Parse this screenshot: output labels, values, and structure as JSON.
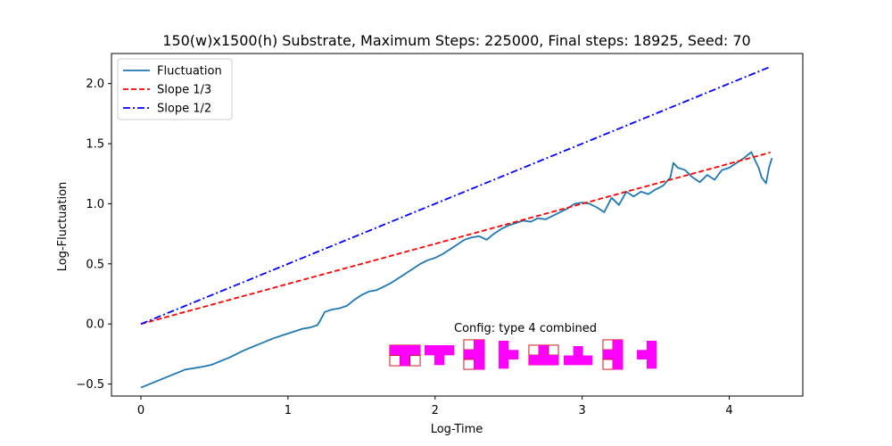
{
  "chart_data": {
    "type": "line",
    "title": "150(w)x1500(h) Substrate, Maximum Steps: 225000, Final steps: 18925, Seed: 70",
    "xlabel": "Log-Time",
    "ylabel": "Log-Fluctuation",
    "xlim": [
      -0.2,
      4.5
    ],
    "ylim": [
      -0.6,
      2.25
    ],
    "xticks": [
      0,
      1,
      2,
      3,
      4
    ],
    "xtick_labels": [
      "0",
      "1",
      "2",
      "3",
      "4"
    ],
    "yticks": [
      -0.5,
      0.0,
      0.5,
      1.0,
      1.5,
      2.0
    ],
    "ytick_labels": [
      "−0.5",
      "0.0",
      "0.5",
      "1.0",
      "1.5",
      "2.0"
    ],
    "grid": false,
    "legend_position": "top-left",
    "series": [
      {
        "name": "Fluctuation",
        "color": "#1f77b4",
        "style": "solid",
        "x": [
          0.0,
          0.1,
          0.2,
          0.3,
          0.4,
          0.48,
          0.6,
          0.7,
          0.8,
          0.9,
          1.0,
          1.1,
          1.15,
          1.2,
          1.22,
          1.25,
          1.3,
          1.35,
          1.4,
          1.45,
          1.5,
          1.55,
          1.6,
          1.65,
          1.7,
          1.75,
          1.8,
          1.85,
          1.9,
          1.95,
          2.0,
          2.05,
          2.1,
          2.15,
          2.2,
          2.25,
          2.3,
          2.35,
          2.4,
          2.45,
          2.5,
          2.55,
          2.6,
          2.65,
          2.7,
          2.75,
          2.8,
          2.85,
          2.9,
          2.95,
          3.0,
          3.05,
          3.1,
          3.15,
          3.2,
          3.25,
          3.3,
          3.35,
          3.4,
          3.45,
          3.5,
          3.55,
          3.6,
          3.62,
          3.65,
          3.7,
          3.75,
          3.8,
          3.85,
          3.9,
          3.95,
          4.0,
          4.05,
          4.1,
          4.15,
          4.18,
          4.2,
          4.22,
          4.25,
          4.27,
          4.29
        ],
        "y": [
          -0.53,
          -0.48,
          -0.43,
          -0.38,
          -0.36,
          -0.34,
          -0.28,
          -0.22,
          -0.17,
          -0.12,
          -0.08,
          -0.04,
          -0.03,
          -0.01,
          0.03,
          0.1,
          0.12,
          0.13,
          0.15,
          0.2,
          0.24,
          0.27,
          0.28,
          0.31,
          0.34,
          0.38,
          0.42,
          0.46,
          0.5,
          0.53,
          0.55,
          0.58,
          0.62,
          0.66,
          0.7,
          0.72,
          0.73,
          0.7,
          0.75,
          0.79,
          0.82,
          0.84,
          0.86,
          0.85,
          0.88,
          0.87,
          0.9,
          0.93,
          0.96,
          1.0,
          1.01,
          1.0,
          0.97,
          0.93,
          1.05,
          0.99,
          1.1,
          1.06,
          1.1,
          1.08,
          1.12,
          1.15,
          1.22,
          1.34,
          1.3,
          1.28,
          1.22,
          1.18,
          1.24,
          1.2,
          1.28,
          1.3,
          1.34,
          1.38,
          1.43,
          1.35,
          1.3,
          1.22,
          1.17,
          1.3,
          1.38
        ]
      },
      {
        "name": "Slope 1/3",
        "color": "#ff0000",
        "style": "dashed",
        "x": [
          0.0,
          4.28
        ],
        "y": [
          0.0,
          1.427
        ]
      },
      {
        "name": "Slope 1/2",
        "color": "#0000ff",
        "style": "dashdot",
        "x": [
          0.0,
          4.28
        ],
        "y": [
          0.0,
          2.14
        ]
      }
    ],
    "annotation": {
      "text": "Config:  type 4 combined"
    },
    "config_shapes": [
      {
        "name": "t-piece-framed",
        "color": "#ff00ff",
        "cells": [
          "111",
          "010"
        ],
        "framed": true
      },
      {
        "name": "t-piece-down",
        "color": "#ff00ff",
        "cells": [
          "111",
          "010"
        ],
        "framed": false
      },
      {
        "name": "t-piece-vertical-framed",
        "color": "#ff00ff",
        "cells": [
          "01",
          "11",
          "01"
        ],
        "framed": true
      },
      {
        "name": "t-piece-right",
        "color": "#ff00ff",
        "cells": [
          "10",
          "11",
          "10"
        ],
        "framed": false
      },
      {
        "name": "t-piece-up-framed",
        "color": "#ff00ff",
        "cells": [
          "010",
          "111"
        ],
        "framed": true
      },
      {
        "name": "t-piece-up",
        "color": "#ff00ff",
        "cells": [
          "010",
          "111"
        ],
        "framed": false
      },
      {
        "name": "t-piece-left-framed",
        "color": "#ff00ff",
        "cells": [
          "01",
          "11",
          "01"
        ],
        "framed": true
      },
      {
        "name": "t-piece-left",
        "color": "#ff00ff",
        "cells": [
          "01",
          "11",
          "01"
        ],
        "framed": false
      }
    ]
  }
}
